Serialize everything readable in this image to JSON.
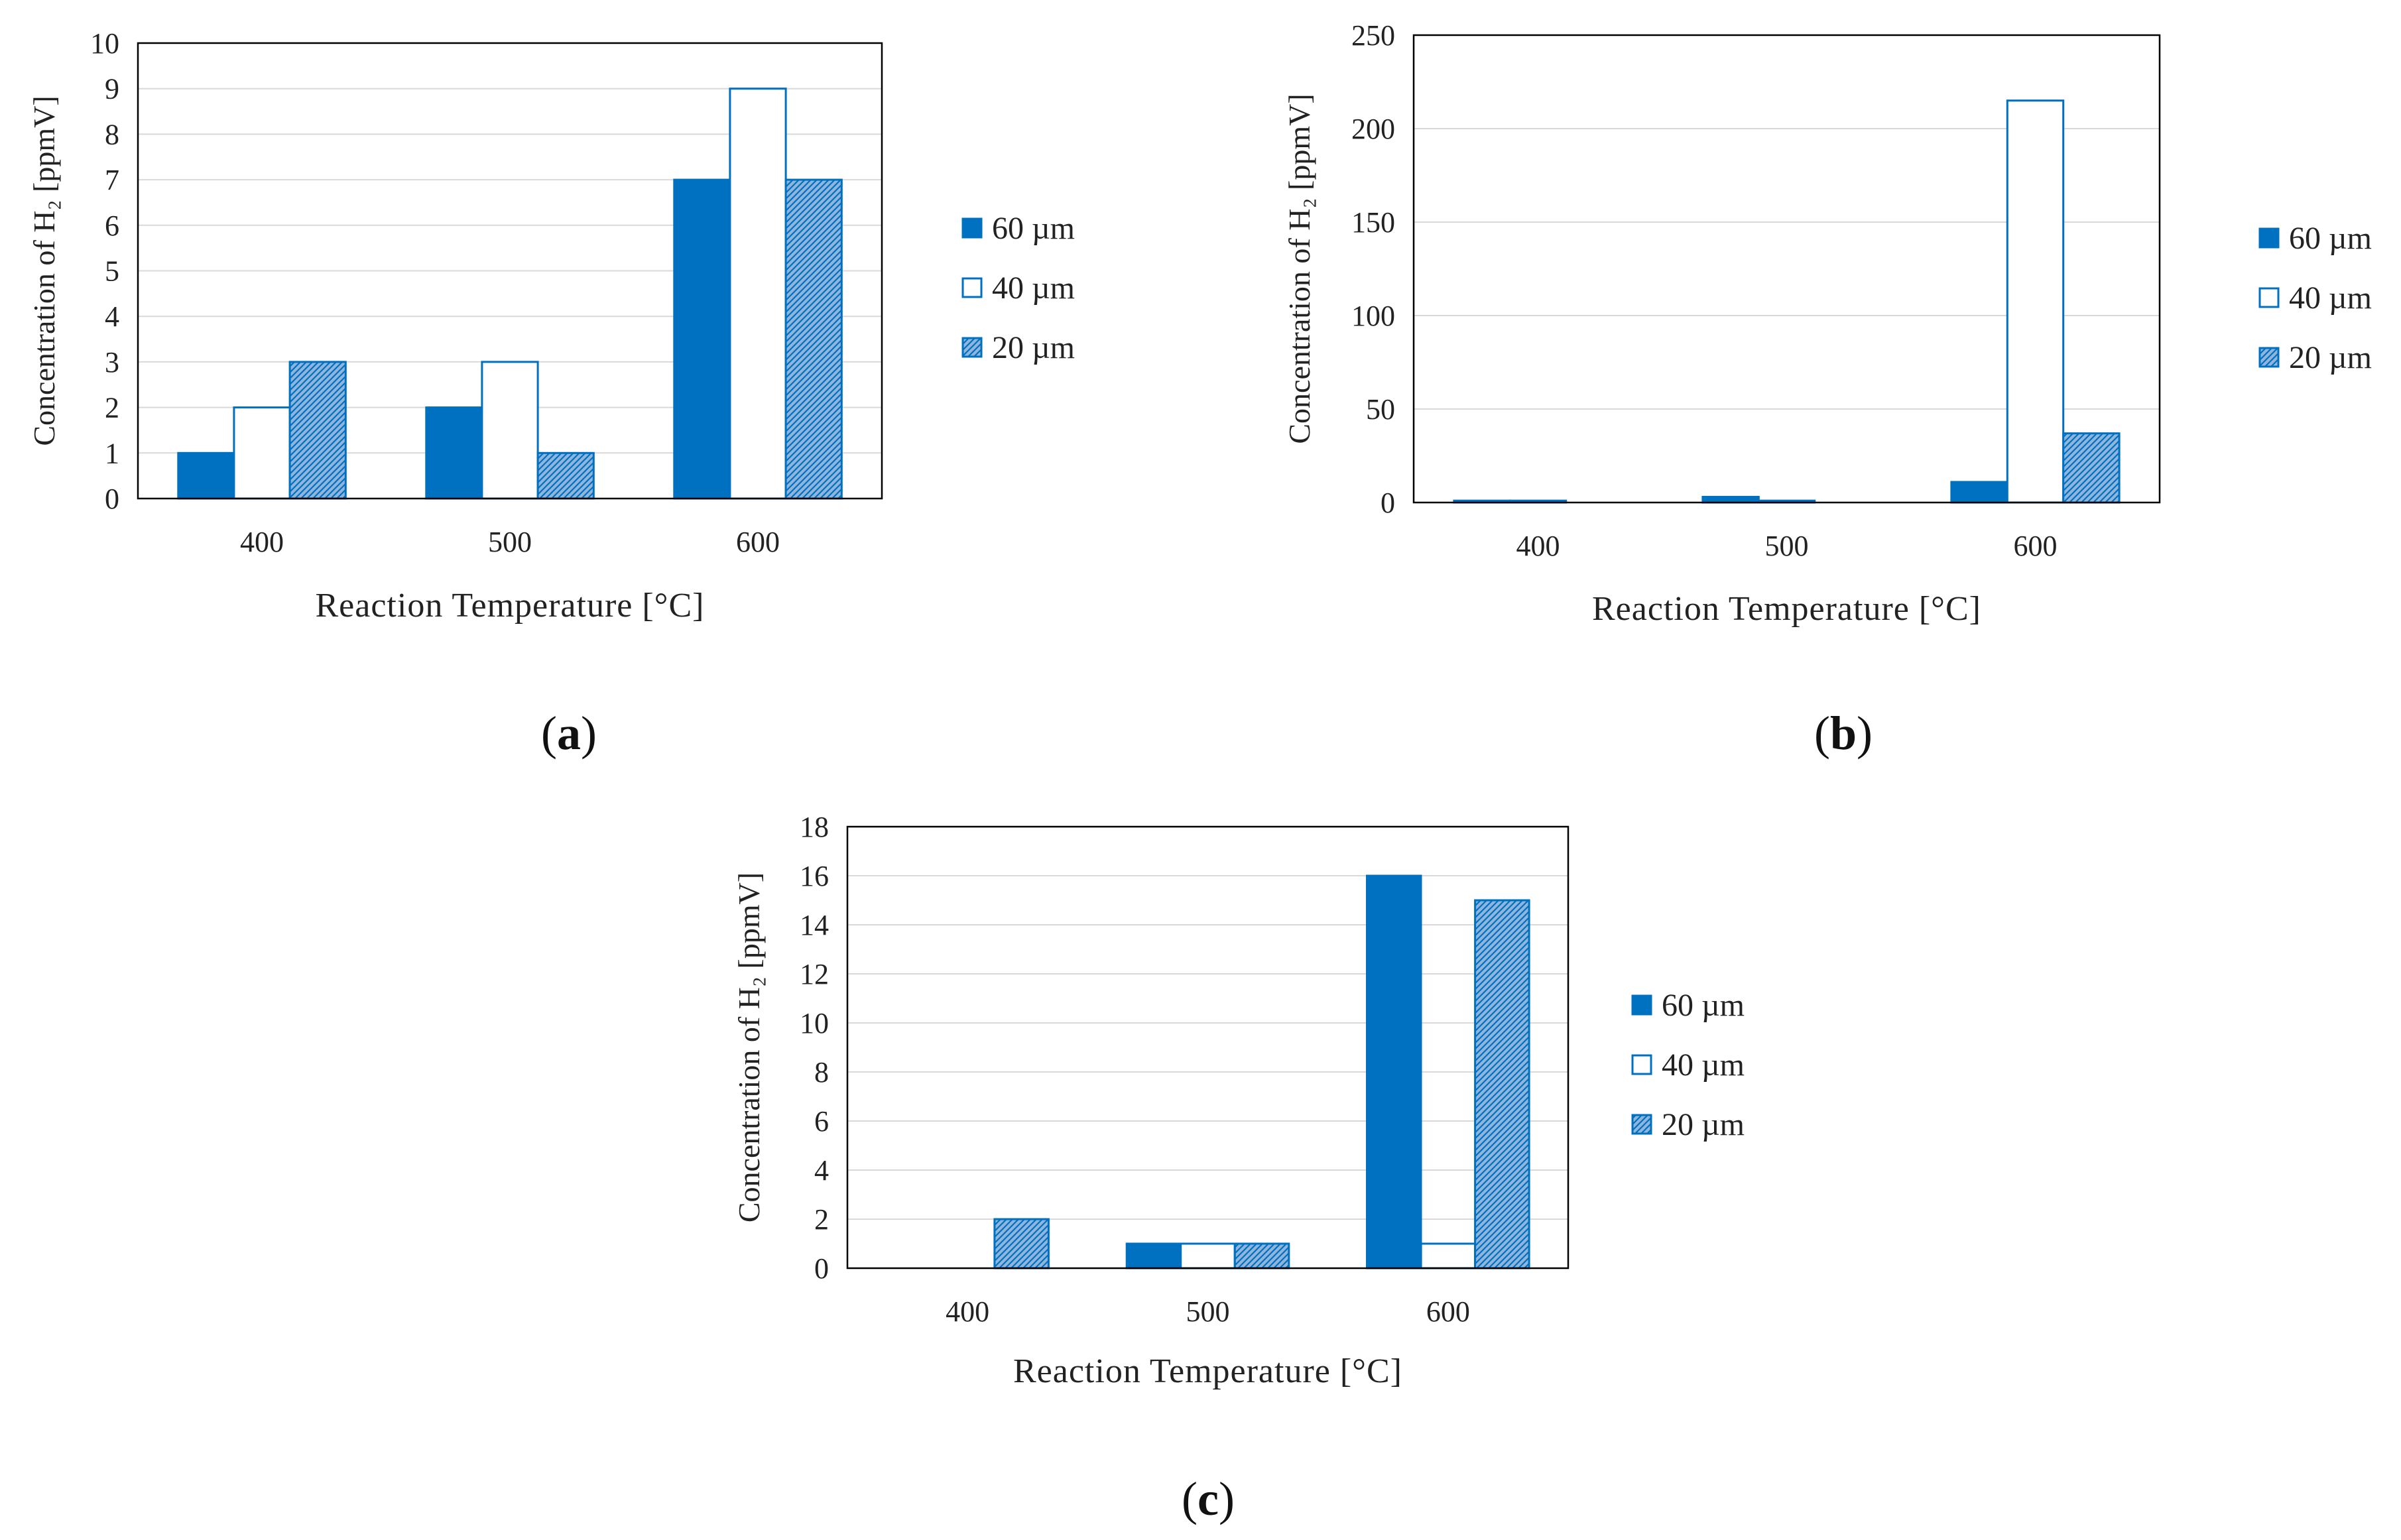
{
  "colors": {
    "accent": "#0070C0",
    "grid": "#d9d9d9",
    "frame": "#000000",
    "text": "#222222"
  },
  "legend": {
    "series": [
      {
        "name": "60 µm",
        "style": "solid"
      },
      {
        "name": "40 µm",
        "style": "outline"
      },
      {
        "name": "20 µm",
        "style": "hatched"
      }
    ]
  },
  "chart_data": [
    {
      "type": "bar",
      "panel_label": "a",
      "title": "",
      "xlabel": "Reaction Temperature [°C]",
      "ylabel": "Concentration of H₂ [ppmV]",
      "categories": [
        "400",
        "500",
        "600"
      ],
      "ylim": [
        0,
        10
      ],
      "yticks": [
        0,
        1,
        2,
        3,
        4,
        5,
        6,
        7,
        8,
        9,
        10
      ],
      "grid": true,
      "legend_position": "right",
      "series": [
        {
          "name": "60 µm",
          "values": [
            1,
            2,
            7
          ]
        },
        {
          "name": "40 µm",
          "values": [
            2,
            3,
            9
          ]
        },
        {
          "name": "20 µm",
          "values": [
            3,
            1,
            7
          ]
        }
      ]
    },
    {
      "type": "bar",
      "panel_label": "b",
      "title": "",
      "xlabel": "Reaction Temperature [°C]",
      "ylabel": "Concentration of H₂ [ppmV]",
      "categories": [
        "400",
        "500",
        "600"
      ],
      "ylim": [
        0,
        250
      ],
      "yticks": [
        0,
        50,
        100,
        150,
        200,
        250
      ],
      "grid": true,
      "legend_position": "right",
      "series": [
        {
          "name": "60 µm",
          "values": [
            1,
            3,
            11
          ]
        },
        {
          "name": "40 µm",
          "values": [
            1,
            1,
            215
          ]
        },
        {
          "name": "20 µm",
          "values": [
            0,
            0,
            37
          ]
        }
      ]
    },
    {
      "type": "bar",
      "panel_label": "c",
      "title": "",
      "xlabel": "Reaction Temperature [°C]",
      "ylabel": "Concentration of H₂ [ppmV]",
      "categories": [
        "400",
        "500",
        "600"
      ],
      "ylim": [
        0,
        18
      ],
      "yticks": [
        0,
        2,
        4,
        6,
        8,
        10,
        12,
        14,
        16,
        18
      ],
      "grid": true,
      "legend_position": "right",
      "series": [
        {
          "name": "60 µm",
          "values": [
            0,
            1,
            16
          ]
        },
        {
          "name": "40 µm",
          "values": [
            0,
            1,
            1
          ]
        },
        {
          "name": "20 µm",
          "values": [
            2,
            1,
            15
          ]
        }
      ]
    }
  ]
}
